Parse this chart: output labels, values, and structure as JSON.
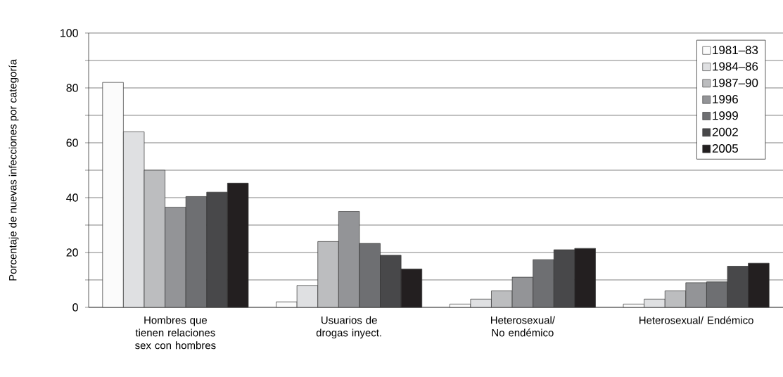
{
  "chart_data": {
    "type": "bar",
    "ylabel": "Porcentaje de nuevas infecciones por categoría",
    "categories": [
      "Hombres que tienen relaciones sex con hombres",
      "Usuarios de drogas inyect.",
      "Heterosexual/ No endémico",
      "Heterosexual/ Endémico"
    ],
    "series": [
      {
        "name": "1981–83",
        "color": "#fbfbfb",
        "values": [
          82,
          2,
          1.2,
          1.2
        ]
      },
      {
        "name": "1984–86",
        "color": "#dfe0e2",
        "values": [
          64,
          8,
          3,
          3
        ]
      },
      {
        "name": "1987–90",
        "color": "#bcbdbf",
        "values": [
          50,
          24,
          6,
          6
        ]
      },
      {
        "name": "1996",
        "color": "#939497",
        "values": [
          36.5,
          35,
          11,
          9
        ]
      },
      {
        "name": "1999",
        "color": "#6e6f72",
        "values": [
          40.4,
          23.3,
          17.4,
          9.3
        ]
      },
      {
        "name": "2002",
        "color": "#48484a",
        "values": [
          42,
          19,
          21,
          15
        ]
      },
      {
        "name": "2005",
        "color": "#231f20",
        "values": [
          45.3,
          14,
          21.5,
          16.1
        ]
      }
    ],
    "ylim": [
      0,
      100
    ],
    "yticks": [
      0,
      {
        "value": 10,
        "label": null
      },
      20,
      {
        "value": 30,
        "label": null
      },
      40,
      {
        "value": 50,
        "label": null
      },
      60,
      {
        "value": 70,
        "label": null
      },
      80,
      {
        "value": 90,
        "label": null
      },
      100
    ],
    "grid": "y",
    "legend": "top right"
  }
}
